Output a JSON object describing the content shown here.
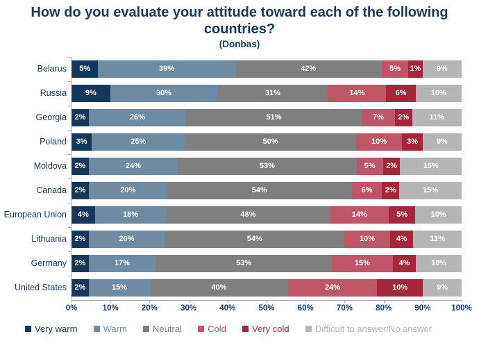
{
  "title": "How do you evaluate your attitude toward each of the following countries?",
  "subtitle": "(Donbas)",
  "colors": {
    "title_text": "#17375d",
    "axis_line": "#a6a6a6",
    "bar_value_text": "#ffffff",
    "background": "#ffffff"
  },
  "chart_data": {
    "type": "bar",
    "variant": "horizontal-stacked",
    "title": "How do you evaluate your attitude toward each of the following countries?",
    "subtitle": "(Donbas)",
    "categories": [
      "Belarus",
      "Russia",
      "Georgia",
      "Poland",
      "Moldova",
      "Canada",
      "European Union",
      "Lithuania",
      "Germany",
      "United States"
    ],
    "series": [
      {
        "key": "very-warm",
        "name": "Very warm",
        "color": "#14375c",
        "values": [
          5,
          9,
          2,
          3,
          2,
          2,
          4,
          2,
          2,
          2
        ]
      },
      {
        "key": "warm",
        "name": "Warm",
        "color": "#6d8ca3",
        "values": [
          39,
          30,
          26,
          25,
          24,
          20,
          18,
          20,
          17,
          15
        ]
      },
      {
        "key": "neutral",
        "name": "Neutral",
        "color": "#7f7f7f",
        "values": [
          42,
          31,
          51,
          50,
          53,
          54,
          48,
          54,
          53,
          40
        ]
      },
      {
        "key": "cold",
        "name": "Cold",
        "color": "#c05568",
        "values": [
          5,
          14,
          7,
          10,
          5,
          6,
          14,
          10,
          15,
          24
        ]
      },
      {
        "key": "very-cold",
        "name": "Very cold",
        "color": "#a62639",
        "values": [
          1,
          6,
          2,
          3,
          2,
          2,
          5,
          4,
          4,
          10
        ]
      },
      {
        "key": "no-answer",
        "name": "Difficult to answer/No answer",
        "color": "#b5b5b5",
        "values": [
          9,
          10,
          11,
          9,
          15,
          15,
          10,
          11,
          10,
          9
        ]
      }
    ],
    "value_suffix": "%",
    "x_ticks": [
      "0%",
      "10%",
      "20%",
      "30%",
      "40%",
      "50%",
      "60%",
      "70%",
      "80%",
      "90%",
      "100%"
    ],
    "xlim": [
      0,
      100
    ],
    "grid": false,
    "legend_position": "bottom"
  }
}
